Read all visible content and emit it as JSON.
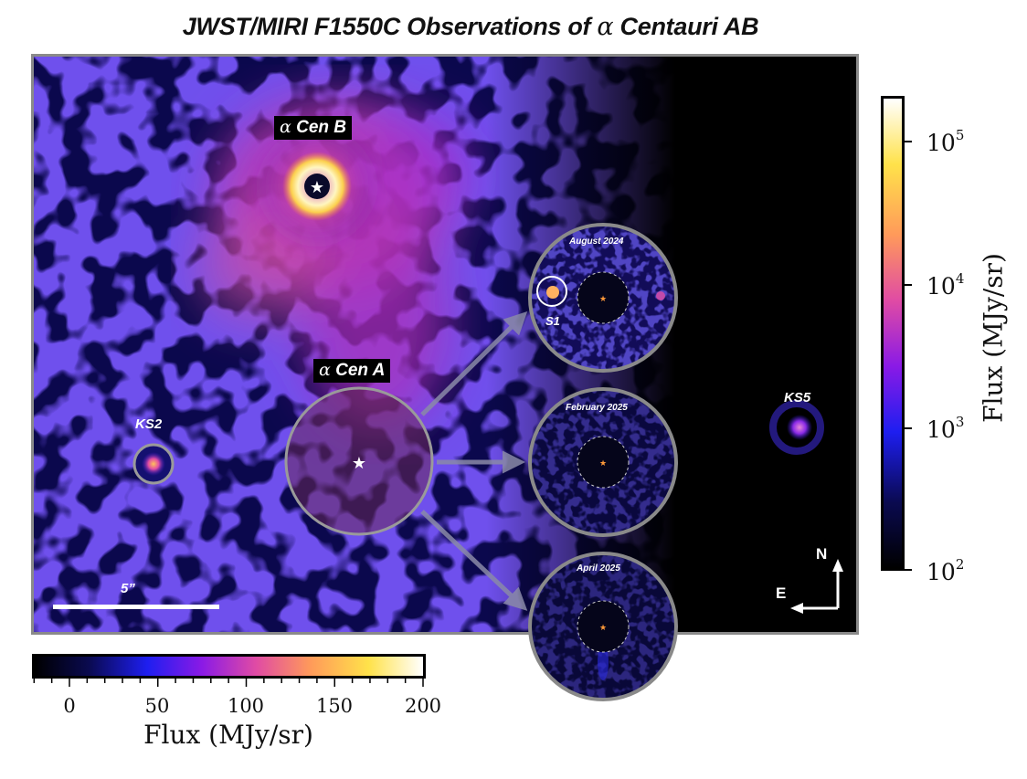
{
  "title": {
    "prefix": "JWST/MIRI F1550C Observations of ",
    "greek": "α",
    "suffix": " Centauri AB"
  },
  "labels": {
    "cen_b": {
      "greek": "α",
      "text": " Cen B"
    },
    "cen_a": {
      "greek": "α",
      "text": " Cen A"
    },
    "ks2": "KS2",
    "ks5": "KS5",
    "s1": "S1",
    "scale_bar": "5”",
    "north": "N",
    "east": "E"
  },
  "epochs": [
    {
      "label": "August 2024"
    },
    {
      "label": "February 2025"
    },
    {
      "label": "April 2025"
    }
  ],
  "colorbar_log": {
    "ticks": [
      {
        "base": "10",
        "exp": "5"
      },
      {
        "base": "10",
        "exp": "4"
      },
      {
        "base": "10",
        "exp": "3"
      },
      {
        "base": "10",
        "exp": "2"
      }
    ],
    "label": "Flux (MJy/sr)"
  },
  "colorbar_linear": {
    "ticks": [
      "0",
      "50",
      "100",
      "150",
      "200"
    ],
    "label": "Flux (MJy/sr)"
  },
  "colors": {
    "colormap": [
      "#000000",
      "#0a0a50",
      "#1e1ef0",
      "#8a1ae6",
      "#e04ba4",
      "#ff9a5a",
      "#ffe24a",
      "#ffffff"
    ],
    "frame": "#8a8a8a"
  }
}
